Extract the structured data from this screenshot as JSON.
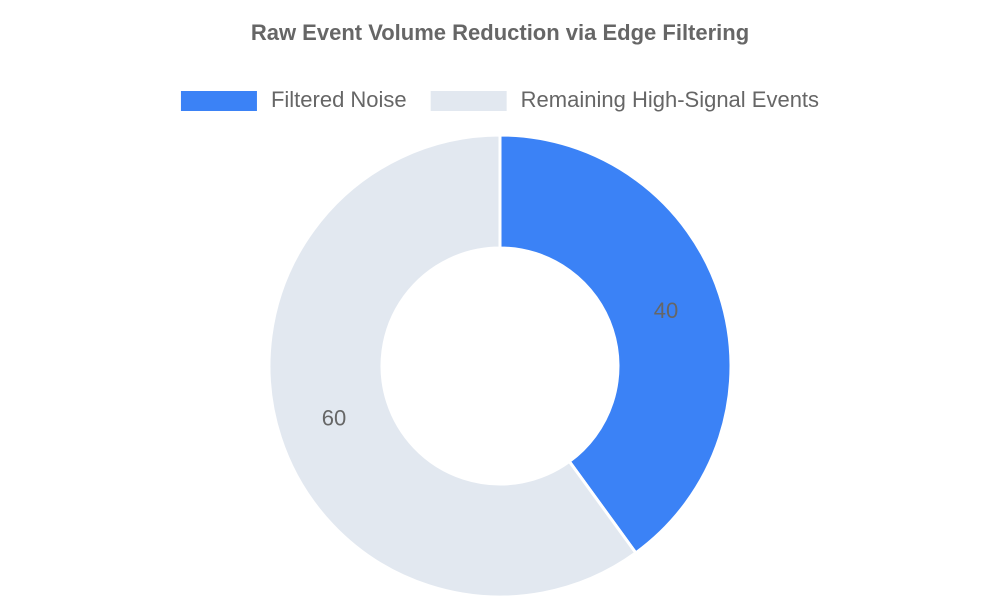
{
  "chart_data": {
    "type": "doughnut",
    "title": "Raw Event Volume Reduction via Edge Filtering",
    "categories": [
      "Filtered Noise",
      "Remaining High-Signal Events"
    ],
    "values": [
      40,
      60
    ],
    "colors": [
      "#3b82f6",
      "#e2e8f0"
    ],
    "legend": "top"
  }
}
